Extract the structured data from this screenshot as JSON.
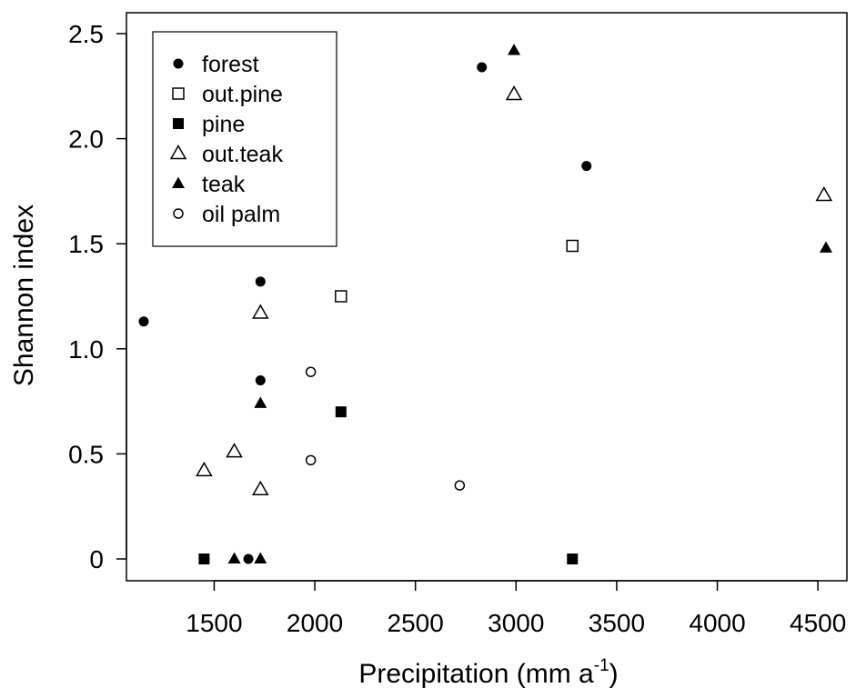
{
  "chart_data": {
    "type": "scatter",
    "xlabel": "Precipitation (mm a",
    "xlabel_superscript": "-1",
    "xlabel_close": ")",
    "ylabel": "Shannon index",
    "xlim": [
      1100,
      4550
    ],
    "ylim": [
      -0.09,
      2.6
    ],
    "x_ticks": [
      1500,
      2000,
      2500,
      3000,
      3500,
      4000,
      4500
    ],
    "y_ticks": [
      0,
      0.5,
      1.0,
      1.5,
      2.0,
      2.5
    ],
    "x_tick_labels": [
      "1500",
      "2000",
      "2500",
      "3000",
      "3500",
      "4000",
      "4500"
    ],
    "y_tick_labels": [
      "0",
      "0.5",
      "1.0",
      "1.5",
      "2.0",
      "2.5"
    ],
    "grid": false,
    "legend_position": "top-left",
    "series": [
      {
        "name": "forest",
        "marker": "filled-circle",
        "points": [
          [
            1150,
            1.13
          ],
          [
            1730,
            1.32
          ],
          [
            1730,
            0.85
          ],
          [
            1670,
            0.0
          ],
          [
            2830,
            2.34
          ],
          [
            3350,
            1.87
          ]
        ]
      },
      {
        "name": "out.pine",
        "marker": "open-square",
        "points": [
          [
            2130,
            1.25
          ],
          [
            3280,
            1.49
          ]
        ]
      },
      {
        "name": "pine",
        "marker": "filled-square",
        "points": [
          [
            1450,
            0.0
          ],
          [
            2130,
            0.7
          ],
          [
            3280,
            0.0
          ]
        ]
      },
      {
        "name": "out.teak",
        "marker": "open-triangle",
        "points": [
          [
            1450,
            0.42
          ],
          [
            1600,
            0.51
          ],
          [
            1730,
            1.17
          ],
          [
            1730,
            0.33
          ],
          [
            2990,
            2.21
          ],
          [
            4530,
            1.73
          ]
        ]
      },
      {
        "name": "teak",
        "marker": "filled-triangle",
        "points": [
          [
            1600,
            0.0
          ],
          [
            1730,
            0.0
          ],
          [
            1730,
            0.74
          ],
          [
            2990,
            2.42
          ],
          [
            4540,
            1.48
          ]
        ]
      },
      {
        "name": "oil palm",
        "marker": "open-circle",
        "points": [
          [
            1980,
            0.89
          ],
          [
            1980,
            0.47
          ],
          [
            2720,
            0.35
          ]
        ]
      }
    ]
  }
}
